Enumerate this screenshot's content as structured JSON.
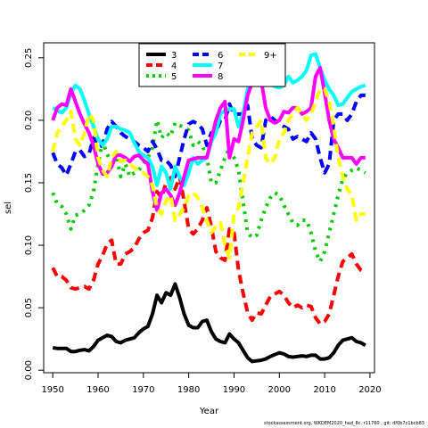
{
  "chart_data": {
    "type": "line",
    "xlabel": "Year",
    "ylabel": "sel",
    "xlim": [
      1948,
      2021
    ],
    "ylim": [
      -0.002,
      0.262
    ],
    "xticks": [
      1950,
      1960,
      1970,
      1980,
      1990,
      2000,
      2010,
      2020
    ],
    "yticks": [
      0.0,
      0.05,
      0.1,
      0.15,
      0.2,
      0.25
    ],
    "ytick_labels": [
      "0.00",
      "0.05",
      "0.10",
      "0.15",
      "0.20",
      "0.25"
    ],
    "legend_position": "top",
    "x": [
      1950,
      1951,
      1952,
      1953,
      1954,
      1955,
      1956,
      1957,
      1958,
      1959,
      1960,
      1961,
      1962,
      1963,
      1964,
      1965,
      1966,
      1967,
      1968,
      1969,
      1970,
      1971,
      1972,
      1973,
      1974,
      1975,
      1976,
      1977,
      1978,
      1979,
      1980,
      1981,
      1982,
      1983,
      1984,
      1985,
      1986,
      1987,
      1988,
      1989,
      1990,
      1991,
      1992,
      1993,
      1994,
      1995,
      1996,
      1997,
      1998,
      1999,
      2000,
      2001,
      2002,
      2003,
      2004,
      2005,
      2006,
      2007,
      2008,
      2009,
      2010,
      2011,
      2012,
      2013,
      2014,
      2015,
      2016,
      2017,
      2018,
      2019
    ],
    "series": [
      {
        "name": "3",
        "color": "#000000",
        "dash": "solid",
        "values": [
          0.018,
          0.0175,
          0.0175,
          0.0175,
          0.015,
          0.015,
          0.016,
          0.0165,
          0.0155,
          0.019,
          0.024,
          0.026,
          0.028,
          0.027,
          0.023,
          0.022,
          0.024,
          0.025,
          0.026,
          0.03,
          0.033,
          0.035,
          0.045,
          0.06,
          0.054,
          0.062,
          0.06,
          0.069,
          0.058,
          0.045,
          0.036,
          0.034,
          0.034,
          0.039,
          0.04,
          0.031,
          0.025,
          0.023,
          0.022,
          0.029,
          0.025,
          0.022,
          0.016,
          0.01,
          0.007,
          0.0075,
          0.008,
          0.009,
          0.011,
          0.0125,
          0.014,
          0.013,
          0.011,
          0.0105,
          0.011,
          0.0115,
          0.011,
          0.012,
          0.012,
          0.009,
          0.009,
          0.01,
          0.014,
          0.02,
          0.024,
          0.025,
          0.026,
          0.023,
          0.022,
          0.02
        ]
      },
      {
        "name": "4",
        "color": "#ff0000",
        "dash": "dash",
        "values": [
          0.082,
          0.075,
          0.075,
          0.072,
          0.066,
          0.065,
          0.066,
          0.067,
          0.065,
          0.072,
          0.085,
          0.092,
          0.101,
          0.104,
          0.085,
          0.085,
          0.093,
          0.095,
          0.098,
          0.105,
          0.11,
          0.112,
          0.122,
          0.143,
          0.138,
          0.15,
          0.154,
          0.145,
          0.155,
          0.135,
          0.113,
          0.109,
          0.113,
          0.12,
          0.13,
          0.115,
          0.095,
          0.09,
          0.088,
          0.113,
          0.11,
          0.08,
          0.062,
          0.046,
          0.04,
          0.046,
          0.045,
          0.052,
          0.059,
          0.061,
          0.063,
          0.06,
          0.054,
          0.05,
          0.052,
          0.05,
          0.052,
          0.051,
          0.042,
          0.037,
          0.039,
          0.045,
          0.06,
          0.075,
          0.087,
          0.09,
          0.093,
          0.085,
          0.08,
          0.078
        ]
      },
      {
        "name": "5",
        "color": "#00cd00",
        "dash": "dot",
        "values": [
          0.142,
          0.133,
          0.131,
          0.125,
          0.113,
          0.124,
          0.125,
          0.128,
          0.132,
          0.143,
          0.165,
          0.183,
          0.173,
          0.165,
          0.172,
          0.155,
          0.165,
          0.155,
          0.158,
          0.16,
          0.165,
          0.17,
          0.178,
          0.2,
          0.186,
          0.19,
          0.187,
          0.198,
          0.196,
          0.194,
          0.192,
          0.18,
          0.183,
          0.18,
          0.17,
          0.15,
          0.15,
          0.16,
          0.17,
          0.178,
          0.17,
          0.16,
          0.135,
          0.11,
          0.106,
          0.108,
          0.12,
          0.13,
          0.138,
          0.142,
          0.14,
          0.132,
          0.125,
          0.118,
          0.116,
          0.12,
          0.12,
          0.11,
          0.095,
          0.087,
          0.095,
          0.11,
          0.125,
          0.14,
          0.153,
          0.158,
          0.16,
          0.162,
          0.16,
          0.158
        ]
      },
      {
        "name": "6",
        "color": "#0000ff",
        "dash": "dash",
        "values": [
          0.174,
          0.165,
          0.162,
          0.156,
          0.165,
          0.175,
          0.176,
          0.171,
          0.173,
          0.186,
          0.178,
          0.18,
          0.193,
          0.199,
          0.195,
          0.19,
          0.187,
          0.185,
          0.183,
          0.18,
          0.178,
          0.175,
          0.183,
          0.177,
          0.168,
          0.168,
          0.164,
          0.155,
          0.17,
          0.185,
          0.197,
          0.199,
          0.197,
          0.193,
          0.18,
          0.19,
          0.19,
          0.2,
          0.2,
          0.213,
          0.204,
          0.205,
          0.205,
          0.212,
          0.185,
          0.18,
          0.178,
          0.2,
          0.203,
          0.2,
          0.197,
          0.195,
          0.193,
          0.185,
          0.187,
          0.185,
          0.183,
          0.19,
          0.185,
          0.17,
          0.158,
          0.165,
          0.2,
          0.205,
          0.205,
          0.2,
          0.205,
          0.215,
          0.22,
          0.22
        ]
      },
      {
        "name": "7",
        "color": "#00ffff",
        "dash": "solid",
        "values": [
          0.21,
          0.208,
          0.206,
          0.21,
          0.222,
          0.228,
          0.225,
          0.216,
          0.205,
          0.195,
          0.185,
          0.18,
          0.185,
          0.195,
          0.195,
          0.193,
          0.192,
          0.19,
          0.182,
          0.175,
          0.172,
          0.17,
          0.163,
          0.148,
          0.163,
          0.158,
          0.145,
          0.163,
          0.155,
          0.148,
          0.158,
          0.17,
          0.165,
          0.168,
          0.17,
          0.183,
          0.19,
          0.205,
          0.208,
          0.209,
          0.209,
          0.195,
          0.205,
          0.225,
          0.232,
          0.233,
          0.232,
          0.228,
          0.229,
          0.227,
          0.226,
          0.228,
          0.235,
          0.23,
          0.232,
          0.235,
          0.24,
          0.252,
          0.253,
          0.242,
          0.232,
          0.225,
          0.22,
          0.212,
          0.213,
          0.218,
          0.223,
          0.225,
          0.227,
          0.228
        ]
      },
      {
        "name": "8",
        "color": "#ff00ff",
        "dash": "solid",
        "values": [
          0.2,
          0.21,
          0.213,
          0.212,
          0.225,
          0.215,
          0.205,
          0.197,
          0.19,
          0.18,
          0.165,
          0.157,
          0.158,
          0.163,
          0.172,
          0.172,
          0.17,
          0.167,
          0.171,
          0.172,
          0.168,
          0.165,
          0.143,
          0.128,
          0.142,
          0.145,
          0.14,
          0.132,
          0.142,
          0.155,
          0.168,
          0.169,
          0.17,
          0.17,
          0.17,
          0.185,
          0.2,
          0.21,
          0.215,
          0.17,
          0.185,
          0.183,
          0.2,
          0.22,
          0.23,
          0.232,
          0.232,
          0.21,
          0.2,
          0.198,
          0.2,
          0.207,
          0.206,
          0.21,
          0.21,
          0.205,
          0.207,
          0.21,
          0.235,
          0.242,
          0.222,
          0.2,
          0.185,
          0.178,
          0.17,
          0.17,
          0.17,
          0.165,
          0.17,
          0.17
        ]
      },
      {
        "name": "9+",
        "color": "#ffff00",
        "dash": "dash",
        "values": [
          0.175,
          0.19,
          0.195,
          0.2,
          0.207,
          0.185,
          0.18,
          0.19,
          0.205,
          0.2,
          0.17,
          0.16,
          0.155,
          0.17,
          0.175,
          0.167,
          0.168,
          0.165,
          0.162,
          0.16,
          0.158,
          0.155,
          0.148,
          0.13,
          0.125,
          0.135,
          0.14,
          0.12,
          0.125,
          0.13,
          0.14,
          0.142,
          0.138,
          0.13,
          0.12,
          0.11,
          0.115,
          0.118,
          0.1,
          0.09,
          0.125,
          0.13,
          0.15,
          0.17,
          0.19,
          0.195,
          0.2,
          0.17,
          0.165,
          0.17,
          0.185,
          0.19,
          0.2,
          0.205,
          0.21,
          0.205,
          0.2,
          0.205,
          0.215,
          0.225,
          0.225,
          0.215,
          0.195,
          0.17,
          0.155,
          0.145,
          0.14,
          0.12,
          0.125,
          0.125
        ]
      }
    ]
  },
  "footer": {
    "text": "stockassessment.org, WKDEM2020_had_8c, r11760 , git: df0b7c1bcb83"
  }
}
